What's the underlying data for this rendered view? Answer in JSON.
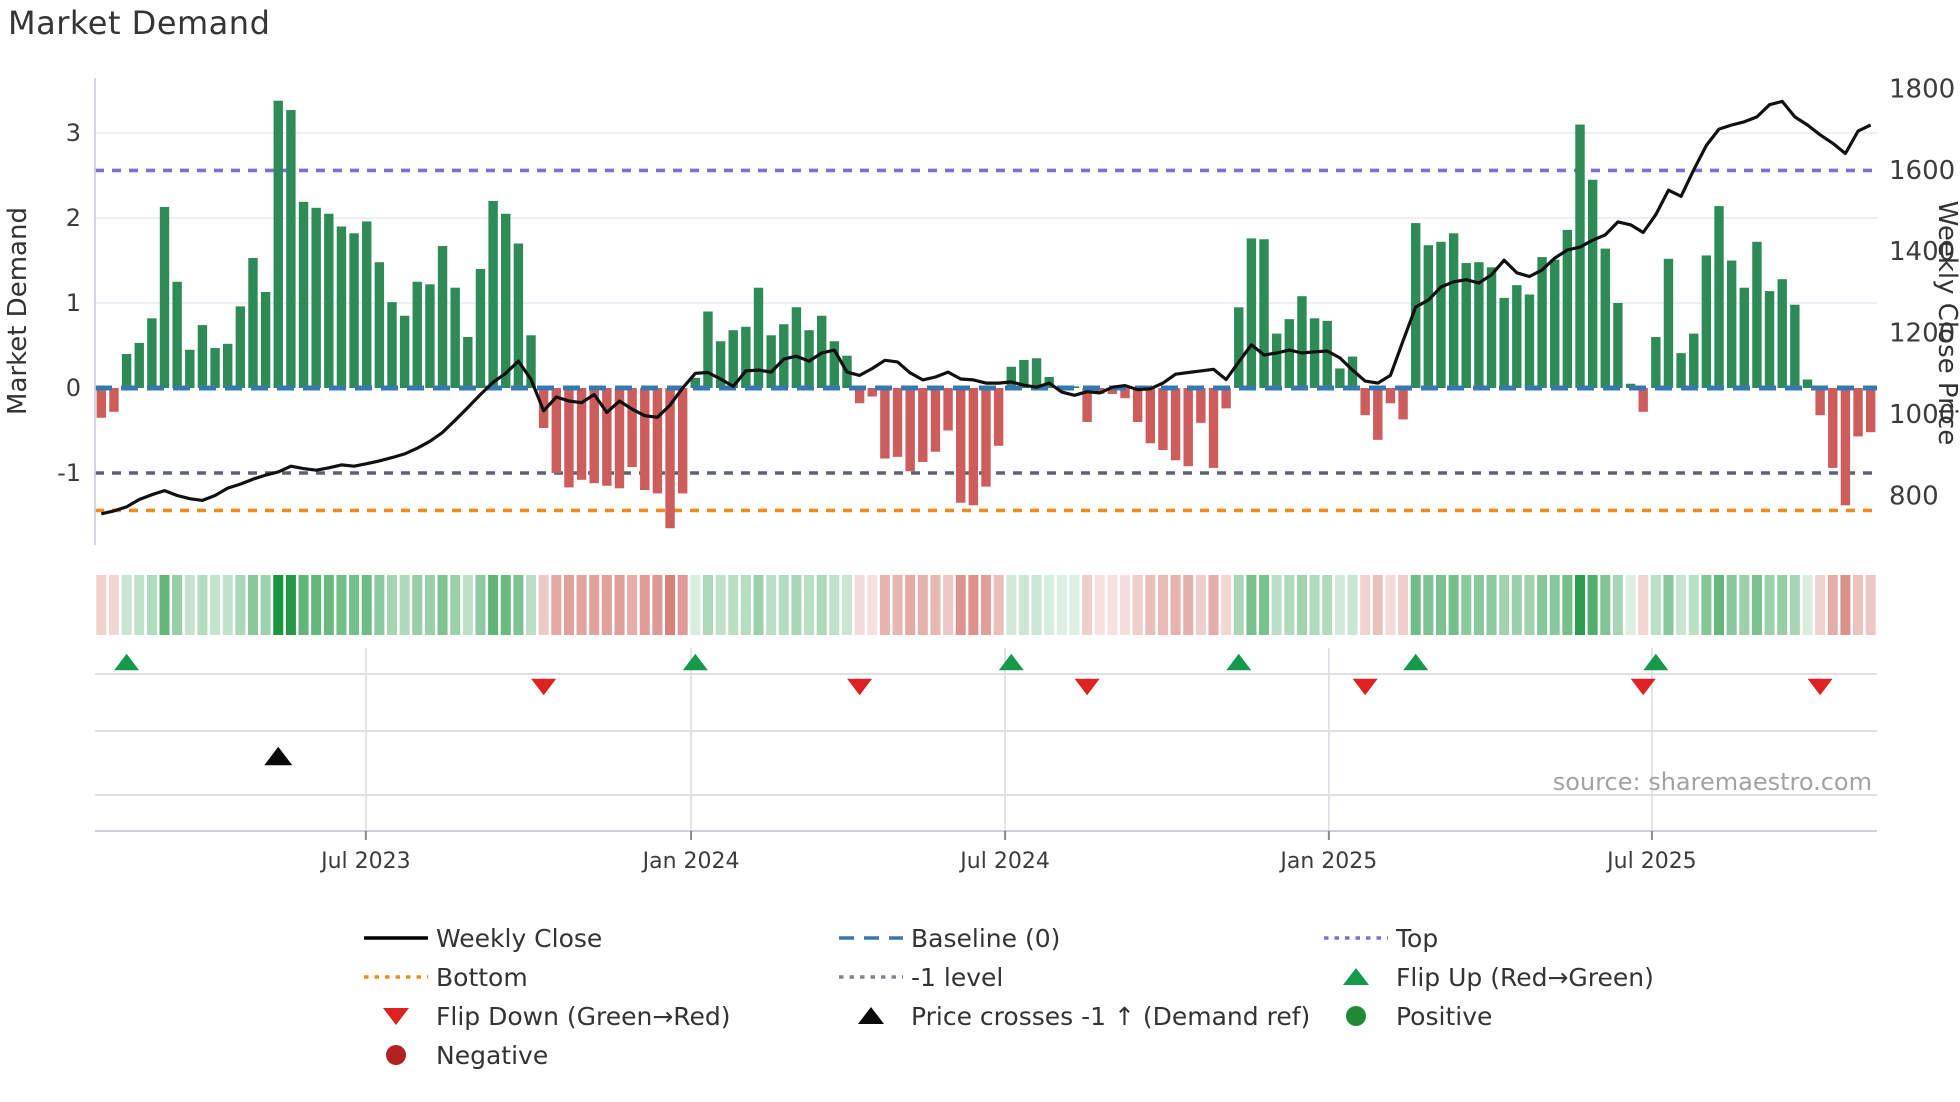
{
  "title": "Market Demand",
  "source": "source: sharemaestro.com",
  "axes": {
    "left": {
      "label": "Market Demand",
      "ticks": [
        -1,
        0,
        1,
        2,
        3
      ]
    },
    "right": {
      "label": "Weekly Close Price",
      "ticks": [
        800,
        1000,
        1200,
        1400,
        1600,
        1800
      ]
    },
    "x": {
      "labels": [
        "Jul 2023",
        "Jan 2024",
        "Jul 2024",
        "Jan 2025",
        "Jul 2025"
      ],
      "fractions": [
        0.152,
        0.3345,
        0.5107,
        0.6924,
        0.8737
      ]
    }
  },
  "chart_data": {
    "type": "bar+line",
    "title": "Market Demand",
    "x_unit": "week",
    "x_range": [
      "Feb 2023",
      "Oct 2025"
    ],
    "ylabel_left": "Market Demand",
    "ylabel_right": "Weekly Close Price",
    "ylim_demand": [
      -1.85,
      3.65
    ],
    "ylim_price": [
      675,
      1825
    ],
    "levels": {
      "baseline": 0,
      "top": 2.56,
      "bottom": -1.44,
      "minus1": -1
    },
    "demand_bars": [
      -0.35,
      -0.28,
      0.4,
      0.53,
      0.82,
      2.13,
      1.25,
      0.45,
      0.74,
      0.47,
      0.52,
      0.96,
      1.53,
      1.13,
      3.38,
      3.27,
      2.19,
      2.12,
      2.05,
      1.9,
      1.82,
      1.96,
      1.48,
      1.01,
      0.85,
      1.25,
      1.22,
      1.67,
      1.18,
      0.6,
      1.4,
      2.2,
      2.05,
      1.7,
      0.62,
      -0.47,
      -1.0,
      -1.17,
      -1.08,
      -1.12,
      -1.15,
      -1.18,
      -0.93,
      -1.2,
      -1.24,
      -1.65,
      -1.24,
      0.12,
      0.9,
      0.55,
      0.68,
      0.72,
      1.18,
      0.62,
      0.75,
      0.95,
      0.68,
      0.85,
      0.55,
      0.38,
      -0.18,
      -0.1,
      -0.83,
      -0.81,
      -0.98,
      -0.87,
      -0.75,
      -0.5,
      -1.35,
      -1.38,
      -1.16,
      -0.68,
      0.25,
      0.33,
      0.35,
      0.13,
      0.03,
      0.02,
      -0.4,
      -0.07,
      -0.07,
      -0.12,
      -0.4,
      -0.65,
      -0.73,
      -0.85,
      -0.92,
      -0.41,
      -0.94,
      -0.24,
      0.95,
      1.76,
      1.75,
      0.64,
      0.81,
      1.08,
      0.82,
      0.79,
      0.23,
      0.37,
      -0.32,
      -0.61,
      -0.18,
      -0.37,
      1.94,
      1.68,
      1.72,
      1.82,
      1.47,
      1.48,
      1.42,
      1.06,
      1.21,
      1.1,
      1.54,
      1.51,
      1.86,
      3.1,
      2.45,
      1.64,
      1.0,
      0.05,
      -0.28,
      0.6,
      1.52,
      0.41,
      0.64,
      1.56,
      2.14,
      1.5,
      1.18,
      1.72,
      1.14,
      1.28,
      0.98,
      0.1,
      -0.32,
      -0.94,
      -1.38,
      -0.57,
      -0.52
    ],
    "weekly_close": [
      755,
      762,
      772,
      790,
      802,
      812,
      800,
      792,
      788,
      800,
      818,
      828,
      840,
      850,
      858,
      872,
      866,
      862,
      868,
      875,
      872,
      878,
      885,
      893,
      902,
      916,
      933,
      955,
      985,
      1016,
      1048,
      1078,
      1100,
      1130,
      1085,
      1008,
      1042,
      1032,
      1028,
      1048,
      1004,
      1032,
      1012,
      996,
      992,
      1022,
      1064,
      1100,
      1102,
      1086,
      1068,
      1106,
      1108,
      1103,
      1135,
      1142,
      1130,
      1150,
      1157,
      1103,
      1095,
      1112,
      1132,
      1128,
      1101,
      1084,
      1091,
      1103,
      1086,
      1084,
      1076,
      1076,
      1079,
      1071,
      1066,
      1076,
      1054,
      1046,
      1055,
      1052,
      1066,
      1070,
      1060,
      1062,
      1076,
      1098,
      1102,
      1106,
      1110,
      1085,
      1128,
      1170,
      1145,
      1150,
      1157,
      1150,
      1153,
      1155,
      1138,
      1108,
      1081,
      1076,
      1095,
      1180,
      1263,
      1280,
      1312,
      1325,
      1330,
      1322,
      1342,
      1378,
      1347,
      1338,
      1354,
      1383,
      1403,
      1410,
      1427,
      1440,
      1472,
      1465,
      1446,
      1490,
      1550,
      1535,
      1600,
      1660,
      1700,
      1710,
      1718,
      1730,
      1760,
      1768,
      1730,
      1710,
      1686,
      1665,
      1640,
      1695,
      1710
    ],
    "markers": {
      "flip_up_indices": [
        2,
        47,
        72,
        90,
        104,
        123
      ],
      "flip_down_indices": [
        35,
        60,
        78,
        100,
        122,
        136
      ],
      "price_cross_minus1_index": 14
    },
    "heatmap": "shades of green/red mirroring demand_bars intensity",
    "legend_position": "bottom",
    "grid": "horizontal at demand 1,2,3"
  },
  "legend": {
    "columns": [
      [
        {
          "sym": "line-black",
          "label": "Weekly Close"
        },
        {
          "sym": "dot-orange",
          "label": "Bottom"
        },
        {
          "sym": "tri-down-red",
          "label": "Flip Down (Green→Red)"
        },
        {
          "sym": "circle-red",
          "label": "Negative"
        }
      ],
      [
        {
          "sym": "dash-blue",
          "label": "Baseline (0)"
        },
        {
          "sym": "dot-gray",
          "label": "-1 level"
        },
        {
          "sym": "tri-up-black",
          "label": "Price crosses -1 ↑ (Demand ref)"
        }
      ],
      [
        {
          "sym": "dot-purple",
          "label": "Top"
        },
        {
          "sym": "tri-up-green",
          "label": "Flip Up (Red→Green)"
        },
        {
          "sym": "circle-green",
          "label": "Positive"
        }
      ]
    ]
  },
  "colors": {
    "bar_positive": "#2e8b57",
    "bar_negative": "#cd5c5c",
    "price_line": "#111111",
    "baseline": "#3779af",
    "top_line": "#7b6fe0",
    "bottom_line": "#f08c1e",
    "minus1_line": "#5c6370",
    "flip_up": "#149a4a",
    "flip_down": "#de2121",
    "positive_dot": "#1f8b34",
    "negative_dot": "#b22222",
    "grid": "#e9e9f1",
    "heat_green": "#1b9440",
    "heat_red": "#c85850"
  }
}
